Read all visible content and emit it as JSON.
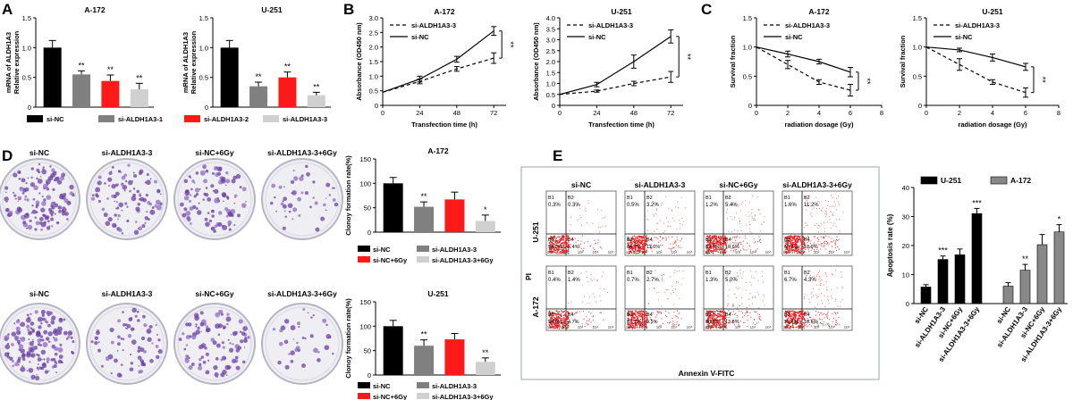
{
  "panel_letters": [
    "A",
    "B",
    "C",
    "D",
    "E"
  ],
  "colors": {
    "black": "#000000",
    "gray": "#808080",
    "red": "#ff1a1a",
    "lightgray": "#d0d0d0",
    "grid": "#bbbbbb"
  },
  "chart_data": [
    {
      "id": "A1",
      "type": "bar",
      "title": "A-172",
      "ylabel": [
        "mRNA of ALDH1A3",
        "Relative expression"
      ],
      "ylim": [
        0,
        1.5
      ],
      "yticks": [
        0,
        0.5,
        1.0,
        1.5
      ],
      "ytick_labels": [
        "0",
        "0.5",
        "1.0",
        "1.5"
      ],
      "categories": [
        "si-NC",
        "si-ALDH1A3-1",
        "si-ALDH1A3-2",
        "si-ALDH1A3-3"
      ],
      "values": [
        1.0,
        0.55,
        0.44,
        0.3
      ],
      "errors": [
        0.12,
        0.06,
        0.1,
        0.1
      ],
      "labels": [
        "",
        "**",
        "**",
        "**"
      ],
      "colors": [
        "#000000",
        "#808080",
        "#ff1a1a",
        "#d0d0d0"
      ]
    },
    {
      "id": "A2",
      "type": "bar",
      "title": "U-251",
      "ylabel": [
        "mRNA of ALDH1A3",
        "Relative expression"
      ],
      "ylim": [
        0,
        1.5
      ],
      "yticks": [
        0,
        0.5,
        1.0,
        1.5
      ],
      "ytick_labels": [
        "0",
        "0.5",
        "1.0",
        "1.5"
      ],
      "categories": [
        "si-NC",
        "si-ALDH1A3-1",
        "si-ALDH1A3-2",
        "si-ALDH1A3-3"
      ],
      "values": [
        1.0,
        0.35,
        0.5,
        0.2
      ],
      "errors": [
        0.12,
        0.07,
        0.09,
        0.05
      ],
      "labels": [
        "",
        "**",
        "**",
        "**"
      ],
      "colors": [
        "#000000",
        "#808080",
        "#ff1a1a",
        "#d0d0d0"
      ]
    },
    {
      "id": "B1",
      "type": "line",
      "title": "A-172",
      "xlabel": "Transfection time (h)",
      "ylabel": "Absorbance (OD450 nm)",
      "x": [
        0,
        24,
        48,
        72
      ],
      "xlim": [
        0,
        80
      ],
      "xticks": [
        0,
        24,
        48,
        72
      ],
      "ylim": [
        0,
        3
      ],
      "yticks": [
        0,
        0.5,
        1.0,
        1.5,
        2.0,
        2.5,
        3.0
      ],
      "ytick_labels": [
        "0",
        "0.5",
        "1.0",
        "1.5",
        "2.0",
        "2.5",
        "3.0"
      ],
      "series": [
        {
          "name": "si-ALDH1A3-3",
          "dash": true,
          "values": [
            0.45,
            0.82,
            1.25,
            1.62
          ],
          "errors": [
            0,
            0.08,
            0.08,
            0.18
          ]
        },
        {
          "name": "si-NC",
          "dash": false,
          "values": [
            0.45,
            0.9,
            1.58,
            2.55
          ],
          "errors": [
            0,
            0.1,
            0.1,
            0.15
          ]
        }
      ],
      "sig": "**"
    },
    {
      "id": "B2",
      "type": "line",
      "title": "U-251",
      "xlabel": "Transfection time (h)",
      "ylabel": "Absorbance (OD450 nm)",
      "x": [
        0,
        24,
        48,
        72
      ],
      "xlim": [
        0,
        80
      ],
      "xticks": [
        0,
        24,
        48,
        72
      ],
      "ylim": [
        0,
        4
      ],
      "yticks": [
        0,
        0.5,
        1.0,
        1.5,
        2.0,
        2.5,
        3.0,
        3.5,
        4.0
      ],
      "ytick_labels": [
        "0",
        "0.5",
        "1.0",
        "1.5",
        "2.0",
        "2.5",
        "3.0",
        "3.5",
        "4.0"
      ],
      "series": [
        {
          "name": "si-ALDH1A3-3",
          "dash": true,
          "values": [
            0.5,
            0.65,
            1.0,
            1.3
          ],
          "errors": [
            0,
            0.05,
            0.1,
            0.25
          ]
        },
        {
          "name": "si-NC",
          "dash": false,
          "values": [
            0.5,
            0.95,
            2.0,
            3.15
          ],
          "errors": [
            0,
            0.1,
            0.3,
            0.3
          ]
        }
      ],
      "sig": "**"
    },
    {
      "id": "C1",
      "type": "line",
      "title": "A-172",
      "xlabel": "radiation dosage (Gy)",
      "ylabel": "Survival fraction",
      "x": [
        0,
        2,
        4,
        6
      ],
      "xlim": [
        0,
        8
      ],
      "xticks": [
        0,
        2,
        4,
        6,
        8
      ],
      "ylim": [
        0,
        1.5
      ],
      "yticks": [
        0,
        0.5,
        1.0,
        1.5
      ],
      "ytick_labels": [
        "0",
        "0.5",
        "1.0",
        "1.5"
      ],
      "series": [
        {
          "name": "si-ALDH1A3-3",
          "dash": true,
          "values": [
            1.0,
            0.7,
            0.4,
            0.26
          ],
          "errors": [
            0,
            0.07,
            0.04,
            0.1
          ]
        },
        {
          "name": "si-NC",
          "dash": false,
          "values": [
            1.0,
            0.88,
            0.75,
            0.57
          ],
          "errors": [
            0,
            0.05,
            0.04,
            0.08
          ]
        }
      ],
      "sig": "**"
    },
    {
      "id": "C2",
      "type": "line",
      "title": "U-251",
      "xlabel": "radiation dosage (Gy)",
      "ylabel": "Survival fraction",
      "x": [
        0,
        2,
        4,
        6
      ],
      "xlim": [
        0,
        8
      ],
      "xticks": [
        0,
        2,
        4,
        6,
        8
      ],
      "ylim": [
        0,
        1.5
      ],
      "yticks": [
        0,
        0.5,
        1.0,
        1.5
      ],
      "ytick_labels": [
        "0",
        "0.5",
        "1.0",
        "1.5"
      ],
      "series": [
        {
          "name": "si-ALDH1A3-3",
          "dash": true,
          "values": [
            1.0,
            0.7,
            0.4,
            0.22
          ],
          "errors": [
            0,
            0.1,
            0.04,
            0.08
          ]
        },
        {
          "name": "si-NC",
          "dash": false,
          "values": [
            1.0,
            0.95,
            0.82,
            0.66
          ],
          "errors": [
            0,
            0.03,
            0.06,
            0.06
          ]
        }
      ],
      "sig": "**"
    },
    {
      "id": "D1",
      "type": "bar",
      "title": "A-172",
      "ylabel": "Clonoy formation rate(%)",
      "ylim": [
        0,
        150
      ],
      "yticks": [
        0,
        50,
        100,
        150
      ],
      "ytick_labels": [
        "0",
        "50",
        "100",
        "150"
      ],
      "categories": [
        "si-NC",
        "si-ALDH1A3-3",
        "si-NC+6Gy",
        "si-ALDH1A3-3+6Gy"
      ],
      "values": [
        100,
        52,
        67,
        23
      ],
      "errors": [
        12,
        10,
        15,
        12
      ],
      "labels": [
        "",
        "**",
        "",
        "*"
      ],
      "colors": [
        "#000000",
        "#808080",
        "#ff1a1a",
        "#d0d0d0"
      ]
    },
    {
      "id": "D2",
      "type": "bar",
      "title": "U-251",
      "ylabel": "Clonoy formation rate(%)",
      "ylim": [
        0,
        150
      ],
      "yticks": [
        0,
        50,
        100,
        150
      ],
      "ytick_labels": [
        "0",
        "50",
        "100",
        "150"
      ],
      "categories": [
        "si-NC",
        "si-ALDH1A3-3",
        "si-NC+6Gy",
        "si-ALDH1A3-3+6Gy"
      ],
      "values": [
        100,
        60,
        73,
        27
      ],
      "errors": [
        12,
        12,
        12,
        8
      ],
      "labels": [
        "",
        "**",
        "",
        "**"
      ],
      "colors": [
        "#000000",
        "#808080",
        "#ff1a1a",
        "#d0d0d0"
      ]
    },
    {
      "id": "E",
      "type": "bar",
      "ylabel": "Apoptosis rate (%)",
      "ylim": [
        0,
        40
      ],
      "yticks": [
        0,
        10,
        20,
        30,
        40
      ],
      "ytick_labels": [
        "0",
        "10",
        "20",
        "30",
        "40"
      ],
      "categories": [
        "si-NC",
        "si-ALDH1A3-3",
        "si-NC+6Gy",
        "si-ALDH1A3-3+6Gy"
      ],
      "series": [
        {
          "name": "U-251",
          "color": "#000000",
          "values": [
            5.7,
            15.2,
            16.8,
            31.0
          ],
          "errors": [
            0.8,
            1.2,
            2.0,
            1.8
          ],
          "labels": [
            "",
            "***",
            "",
            "***"
          ]
        },
        {
          "name": "A-172",
          "color": "#888888",
          "values": [
            6.0,
            11.5,
            20.3,
            24.7
          ],
          "errors": [
            1.2,
            2.0,
            3.5,
            2.5
          ],
          "labels": [
            "",
            "**",
            "",
            "*"
          ]
        }
      ]
    }
  ],
  "legend_A": [
    "si-NC",
    "si-ALDH1A3-1",
    "si-ALDH1A3-2",
    "si-ALDH1A3-3"
  ],
  "legend_D": [
    "si-NC",
    "si-ALDH1A3-3",
    "si-NC+6Gy",
    "si-ALDH1A3-3+6Gy"
  ],
  "colony_labels": [
    "si-NC",
    "si-ALDH1A3-3",
    "si-NC+6Gy",
    "si-ALDH1A3-3+6Gy"
  ],
  "colony_density": [
    [
      0.8,
      0.55,
      0.6,
      0.25
    ],
    [
      0.9,
      0.4,
      0.55,
      0.2
    ]
  ],
  "flow": {
    "col_labels": [
      "si-NC",
      "si-ALDH1A3-3",
      "si-NC+6Gy",
      "si-ALDH1A3-3+6Gy"
    ],
    "row_labels": [
      "U-251",
      "A-172"
    ],
    "ylabel": "PI",
    "xlabel": "Annexin V-FITC",
    "tick_labels": [
      "10¹",
      "10²",
      "10³",
      "10⁴",
      "10⁵"
    ],
    "quadrant_names": [
      "B1",
      "B2",
      "B3",
      "B4"
    ],
    "plots": [
      [
        {
          "b1": "0.3%",
          "b2": "0.3%",
          "b3": "94.0%",
          "b4": "5.4%"
        },
        {
          "b1": "0.5%",
          "b2": "3.2%",
          "b3": "84.7%",
          "b4": "11.6%"
        },
        {
          "b1": "1.2%",
          "b2": "5.4%",
          "b3": "83.0%",
          "b4": "10.6%"
        },
        {
          "b1": "1.6%",
          "b2": "11.2%",
          "b3": "68.3%",
          "b4": "18.9%"
        }
      ],
      [
        {
          "b1": "0.4%",
          "b2": "1.4%",
          "b3": "94.0%",
          "b4": "4.7%"
        },
        {
          "b1": "0.7%",
          "b2": "2.7%",
          "b3": "87.1%",
          "b4": "9.5%"
        },
        {
          "b1": "1.3%",
          "b2": "5.0%",
          "b3": "80.2%",
          "b4": "13.5%"
        },
        {
          "b1": "6.7%",
          "b2": "4.3%",
          "b3": "75.4%",
          "b4": "18.6%"
        }
      ]
    ]
  }
}
